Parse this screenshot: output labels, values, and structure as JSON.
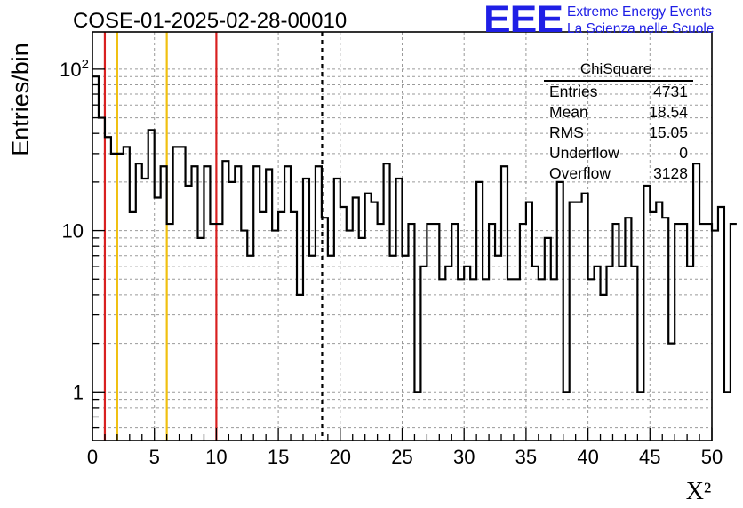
{
  "header": {
    "run_title": "COSE-01-2025-02-28-00010",
    "logo_text": "EEE",
    "logo_line1": "Extreme Energy Events",
    "logo_line2": "La Scienza nelle Scuole"
  },
  "stats": {
    "title": "ChiSquare",
    "rows": [
      {
        "key": "Entries",
        "value": "4731"
      },
      {
        "key": "Mean",
        "value": "18.54"
      },
      {
        "key": "RMS",
        "value": "15.05"
      },
      {
        "key": "Underflow",
        "value": "0"
      },
      {
        "key": "Overflow",
        "value": "3128"
      }
    ]
  },
  "chart_data": {
    "type": "histogram",
    "ylabel": "Entries/bin",
    "xlabel": "X²",
    "xlim": [
      0,
      50
    ],
    "ylim": [
      0.5,
      170
    ],
    "yscale": "log",
    "grid": true,
    "bin_width": 0.5,
    "x_ticks": [
      0,
      5,
      10,
      15,
      20,
      25,
      30,
      35,
      40,
      45,
      50
    ],
    "y_ticks": [
      {
        "value": 1,
        "label": "1"
      },
      {
        "value": 10,
        "label": "10"
      },
      {
        "value": 100,
        "label": "10²"
      }
    ],
    "values": [
      90,
      50,
      38,
      30,
      30,
      33,
      13,
      26,
      21,
      42,
      16,
      25,
      11,
      33,
      33,
      19,
      25,
      9,
      25,
      11,
      11,
      27,
      20,
      25,
      10,
      7,
      25,
      13,
      24,
      10,
      13,
      25,
      13,
      4,
      21,
      7,
      25,
      12,
      7,
      21,
      14,
      10,
      16,
      9,
      17,
      15,
      11,
      26,
      7,
      21,
      7,
      11,
      1,
      6,
      11,
      11,
      5,
      6,
      11,
      5,
      6,
      5,
      20,
      5,
      11,
      7,
      25,
      5,
      5,
      11,
      15,
      6,
      5,
      9,
      5,
      20,
      1,
      15,
      15,
      17,
      5,
      6,
      4,
      6,
      11,
      6,
      12,
      6,
      1,
      19,
      13,
      15,
      12,
      2,
      11,
      11,
      6,
      26,
      11,
      11,
      10,
      14,
      1,
      11
    ],
    "reference_lines": [
      {
        "x": 1,
        "color": "#d82020",
        "style": "solid"
      },
      {
        "x": 2,
        "color": "#f0c010",
        "style": "solid"
      },
      {
        "x": 6,
        "color": "#f0c010",
        "style": "solid"
      },
      {
        "x": 10,
        "color": "#d82020",
        "style": "solid"
      },
      {
        "x": 18.54,
        "color": "#000000",
        "style": "dashed"
      }
    ]
  },
  "colors": {
    "logo_blue": "#1f1fe6",
    "grid": "#9a9a9a",
    "histogram": "#000000"
  }
}
